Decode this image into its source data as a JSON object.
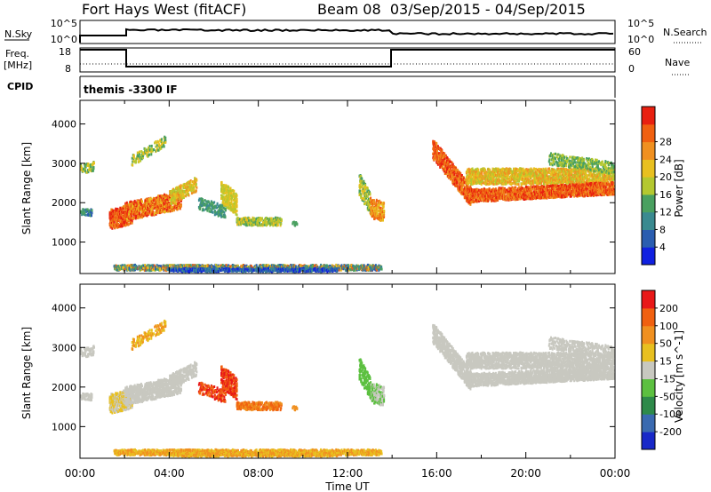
{
  "header": {
    "radar": "Fort Hays West (fitACF)",
    "beam_info": "Beam 08  03/Sep/2015 - 04/Sep/2015"
  },
  "top_panels": {
    "nsky_label": "N.Sky",
    "nsearch_label": "N.Search",
    "nsky_ticks": [
      "10^5",
      "10^0"
    ],
    "nsearch_ticks": [
      "10^5",
      "10^0"
    ],
    "freq_label_1": "Freq.",
    "freq_label_2": "[MHz]",
    "freq_ticks": [
      "18",
      "8"
    ],
    "nave_label": "Nave",
    "nave_ticks": [
      "60",
      "0"
    ],
    "cpid_label": "CPID",
    "cpid_value": "themis -3300 IF"
  },
  "chart_data": [
    {
      "type": "heatmap",
      "panel": "power",
      "ylabel": "Slant Range [km]",
      "xlabel": "",
      "yticks": [
        "1000",
        "2000",
        "3000",
        "4000"
      ],
      "ylim": [
        200,
        4600
      ],
      "xlim_hours": [
        0,
        24
      ],
      "colorbar_label": "Power [dB]",
      "colorbar_ticks": [
        "4",
        "8",
        "12",
        "16",
        "20",
        "24",
        "28"
      ],
      "colorbar_colors": [
        "#1020e0",
        "#2a5db0",
        "#3a8a90",
        "#4aa060",
        "#b4c830",
        "#e8c020",
        "#f09020",
        "#f06010",
        "#e82010"
      ]
    },
    {
      "type": "heatmap",
      "panel": "velocity",
      "ylabel": "Slant Range [km]",
      "xlabel": "Time UT",
      "yticks": [
        "1000",
        "2000",
        "3000",
        "4000"
      ],
      "ylim": [
        200,
        4600
      ],
      "xlim_hours": [
        0,
        24
      ],
      "xticks": [
        "00:00",
        "04:00",
        "08:00",
        "12:00",
        "16:00",
        "20:00",
        "00:00"
      ],
      "colorbar_label": "Velocity [m s^-1]",
      "colorbar_ticks": [
        "200",
        "100",
        "50",
        "15",
        "-15",
        "-50",
        "-100",
        "-200"
      ],
      "colorbar_colors": [
        "#1828c8",
        "#3a6ab0",
        "#2e8a4a",
        "#5cc040",
        "#c8c8c0",
        "#e8c020",
        "#f09020",
        "#f06010",
        "#e81818"
      ]
    }
  ]
}
